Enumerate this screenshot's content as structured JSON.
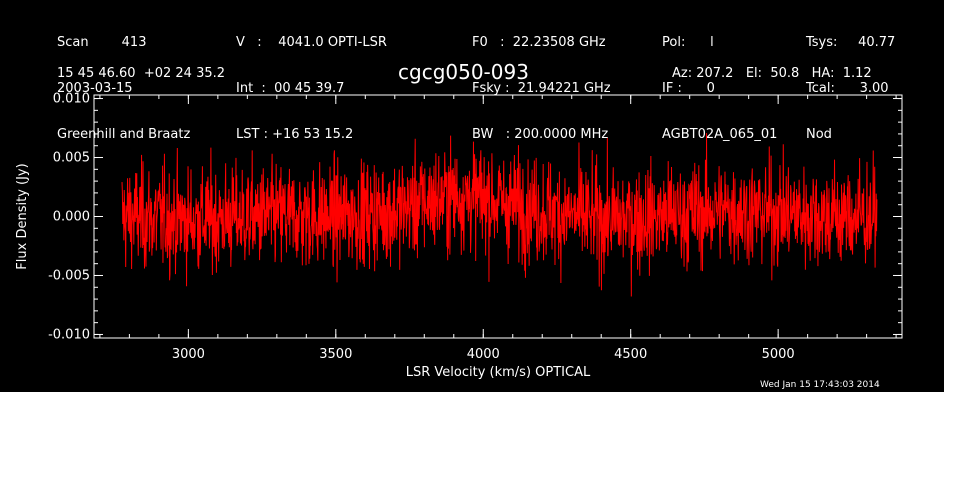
{
  "header": {
    "col1": [
      "Scan        413",
      "2003-03-15",
      "Greenhill and Braatz"
    ],
    "col2": [
      "V   :    4041.0 OPTI-LSR",
      "Int  :  00 45 39.7",
      "LST : +16 53 15.2"
    ],
    "col3": [
      "F0   :  22.23508 GHz",
      "Fsky :  21.94221 GHz",
      "BW   : 200.0000 MHz"
    ],
    "col4": [
      "Pol:      l",
      "IF :      0",
      "AGBT02A_065_01"
    ],
    "col5": [
      "Tsys:     40.77",
      "Tcal:      3.00",
      "Nod"
    ],
    "coords": "15 45 46.60  +02 24 35.2",
    "source": "cgcg050-093",
    "azel": "Az: 207.2   El:  50.8   HA:  1.12",
    "timestamp": "Wed Jan 15 17:43:03 2014"
  },
  "colors": {
    "background": "#000000",
    "axes": "#ffffff",
    "series": "#ff0000"
  },
  "chart_data": {
    "type": "line",
    "title": "cgcg050-093",
    "xlabel": "LSR Velocity (km/s) OPTICAL",
    "ylabel": "Flux Density (Jy)",
    "xlim": [
      2680,
      5420
    ],
    "ylim": [
      -0.0103,
      0.0103
    ],
    "xticks": [
      3000,
      3500,
      4000,
      4500,
      5000
    ],
    "xtick_labels": [
      "3000",
      "3500",
      "4000",
      "4500",
      "5000"
    ],
    "yticks": [
      -0.01,
      -0.005,
      0.0,
      0.005,
      0.01
    ],
    "ytick_labels": [
      "-0.010",
      "-0.005",
      "0.000",
      "0.005",
      "0.010"
    ],
    "grid": false,
    "series": [
      {
        "x_start": 2775,
        "x_end": 5335,
        "baseline": [
          [
            2775,
            0.0
          ],
          [
            3000,
            -0.0003
          ],
          [
            3250,
            0.0
          ],
          [
            3500,
            0.0
          ],
          [
            3700,
            0.0005
          ],
          [
            3900,
            0.0018
          ],
          [
            4000,
            0.0015
          ],
          [
            4200,
            0.0005
          ],
          [
            4400,
            -0.0003
          ],
          [
            4600,
            0.0
          ],
          [
            4800,
            0.0005
          ],
          [
            5000,
            0.0003
          ],
          [
            5200,
            0.0
          ],
          [
            5335,
            0.0
          ]
        ],
        "rms": 0.0022,
        "range_min": -0.0092,
        "range_max": 0.0094
      }
    ]
  }
}
